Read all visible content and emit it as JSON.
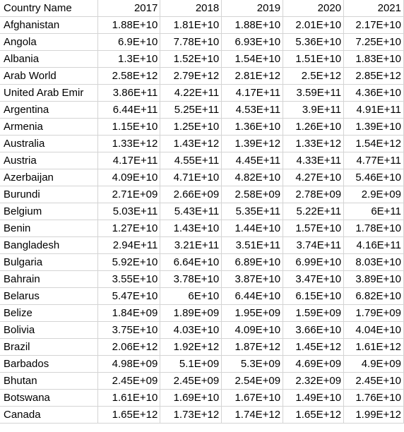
{
  "sheet": {
    "header": {
      "name_label": "Country Name",
      "years": [
        "2017",
        "2018",
        "2019",
        "2020",
        "2021"
      ]
    },
    "rows": [
      {
        "country": "Afghanistan",
        "values": [
          "1.88E+10",
          "1.81E+10",
          "1.88E+10",
          "2.01E+10",
          "2.17E+10"
        ]
      },
      {
        "country": "Angola",
        "values": [
          "6.9E+10",
          "7.78E+10",
          "6.93E+10",
          "5.36E+10",
          "7.25E+10"
        ]
      },
      {
        "country": "Albania",
        "values": [
          "1.3E+10",
          "1.52E+10",
          "1.54E+10",
          "1.51E+10",
          "1.83E+10"
        ]
      },
      {
        "country": "Arab World",
        "values": [
          "2.58E+12",
          "2.79E+12",
          "2.81E+12",
          "2.5E+12",
          "2.85E+12"
        ]
      },
      {
        "country": "United Arab Emir",
        "values": [
          "3.86E+11",
          "4.22E+11",
          "4.17E+11",
          "3.59E+11",
          "4.36E+10"
        ]
      },
      {
        "country": "Argentina",
        "values": [
          "6.44E+11",
          "5.25E+11",
          "4.53E+11",
          "3.9E+11",
          "4.91E+11"
        ]
      },
      {
        "country": "Armenia",
        "values": [
          "1.15E+10",
          "1.25E+10",
          "1.36E+10",
          "1.26E+10",
          "1.39E+10"
        ]
      },
      {
        "country": "Australia",
        "values": [
          "1.33E+12",
          "1.43E+12",
          "1.39E+12",
          "1.33E+12",
          "1.54E+12"
        ]
      },
      {
        "country": "Austria",
        "values": [
          "4.17E+11",
          "4.55E+11",
          "4.45E+11",
          "4.33E+11",
          "4.77E+11"
        ]
      },
      {
        "country": "Azerbaijan",
        "values": [
          "4.09E+10",
          "4.71E+10",
          "4.82E+10",
          "4.27E+10",
          "5.46E+10"
        ]
      },
      {
        "country": "Burundi",
        "values": [
          "2.71E+09",
          "2.66E+09",
          "2.58E+09",
          "2.78E+09",
          "2.9E+09"
        ]
      },
      {
        "country": "Belgium",
        "values": [
          "5.03E+11",
          "5.43E+11",
          "5.35E+11",
          "5.22E+11",
          "6E+11"
        ]
      },
      {
        "country": "Benin",
        "values": [
          "1.27E+10",
          "1.43E+10",
          "1.44E+10",
          "1.57E+10",
          "1.78E+10"
        ]
      },
      {
        "country": "Bangladesh",
        "values": [
          "2.94E+11",
          "3.21E+11",
          "3.51E+11",
          "3.74E+11",
          "4.16E+11"
        ]
      },
      {
        "country": "Bulgaria",
        "values": [
          "5.92E+10",
          "6.64E+10",
          "6.89E+10",
          "6.99E+10",
          "8.03E+10"
        ]
      },
      {
        "country": "Bahrain",
        "values": [
          "3.55E+10",
          "3.78E+10",
          "3.87E+10",
          "3.47E+10",
          "3.89E+10"
        ]
      },
      {
        "country": "Belarus",
        "values": [
          "5.47E+10",
          "6E+10",
          "6.44E+10",
          "6.15E+10",
          "6.82E+10"
        ]
      },
      {
        "country": "Belize",
        "values": [
          "1.84E+09",
          "1.89E+09",
          "1.95E+09",
          "1.59E+09",
          "1.79E+09"
        ]
      },
      {
        "country": "Bolivia",
        "values": [
          "3.75E+10",
          "4.03E+10",
          "4.09E+10",
          "3.66E+10",
          "4.04E+10"
        ]
      },
      {
        "country": "Brazil",
        "values": [
          "2.06E+12",
          "1.92E+12",
          "1.87E+12",
          "1.45E+12",
          "1.61E+12"
        ]
      },
      {
        "country": "Barbados",
        "values": [
          "4.98E+09",
          "5.1E+09",
          "5.3E+09",
          "4.69E+09",
          "4.9E+09"
        ]
      },
      {
        "country": "Bhutan",
        "values": [
          "2.45E+09",
          "2.45E+09",
          "2.54E+09",
          "2.32E+09",
          "2.45E+10"
        ]
      },
      {
        "country": "Botswana",
        "values": [
          "1.61E+10",
          "1.69E+10",
          "1.67E+10",
          "1.49E+10",
          "1.76E+10"
        ]
      },
      {
        "country": "Canada",
        "values": [
          "1.65E+12",
          "1.73E+12",
          "1.74E+12",
          "1.65E+12",
          "1.99E+12"
        ]
      }
    ]
  }
}
